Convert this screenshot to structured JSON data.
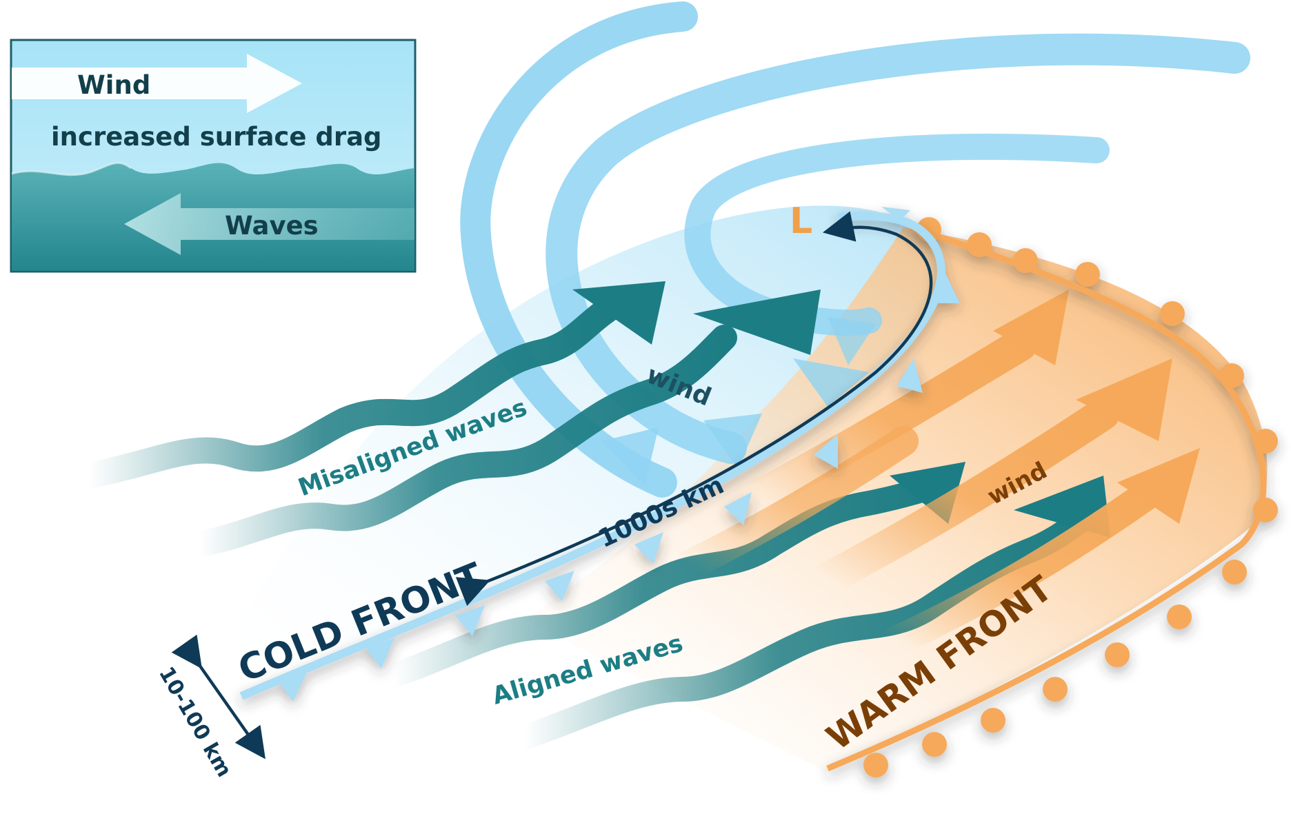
{
  "legend": {
    "wind": "Wind",
    "drag": "increased surface drag",
    "waves": "Waves"
  },
  "labels": {
    "low": "L",
    "wind_cold": "wind",
    "wind_warm": "wind",
    "misaligned": "Misaligned waves",
    "aligned": "Aligned waves",
    "distance": "1000s km",
    "cold_front": "COLD FRONT",
    "warm_front": "WARM FRONT",
    "width": "10-100 km"
  },
  "colors": {
    "cold_air": "#8fd3f2",
    "warm_air": "#f6a95a",
    "wave": "#1d7d84",
    "front_line": "#0f3a57",
    "warm_text": "#7a3f07",
    "low": "#f0a04a"
  }
}
